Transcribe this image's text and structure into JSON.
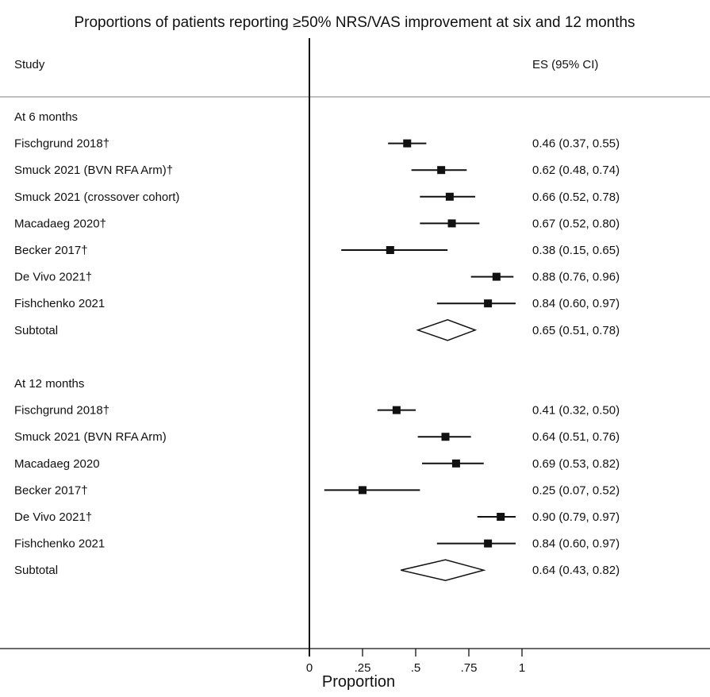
{
  "chart_data": {
    "type": "forest",
    "title": "Proportions of patients reporting ≥50% NRS/VAS improvement at six and 12 months",
    "column_headers": {
      "study": "Study",
      "estimate": "ES (95% CI)"
    },
    "xlabel": "Proportion",
    "x_ticks": [
      {
        "value": 0,
        "label": "0"
      },
      {
        "value": 0.25,
        "label": ".25"
      },
      {
        "value": 0.5,
        "label": ".5"
      },
      {
        "value": 0.75,
        "label": ".75"
      },
      {
        "value": 1,
        "label": "1"
      }
    ],
    "xlim": [
      0,
      1
    ],
    "groups": [
      {
        "label": "At 6 months",
        "studies": [
          {
            "study": "Fischgrund 2018†",
            "es": 0.46,
            "lower": 0.37,
            "upper": 0.55,
            "ci_text": "0.46 (0.37, 0.55)"
          },
          {
            "study": "Smuck 2021 (BVN RFA Arm)†",
            "es": 0.62,
            "lower": 0.48,
            "upper": 0.74,
            "ci_text": "0.62 (0.48, 0.74)"
          },
          {
            "study": "Smuck 2021 (crossover cohort)",
            "es": 0.66,
            "lower": 0.52,
            "upper": 0.78,
            "ci_text": "0.66 (0.52, 0.78)"
          },
          {
            "study": "Macadaeg 2020†",
            "es": 0.67,
            "lower": 0.52,
            "upper": 0.8,
            "ci_text": "0.67 (0.52, 0.80)"
          },
          {
            "study": "Becker 2017†",
            "es": 0.38,
            "lower": 0.15,
            "upper": 0.65,
            "ci_text": "0.38 (0.15, 0.65)"
          },
          {
            "study": "De Vivo 2021†",
            "es": 0.88,
            "lower": 0.76,
            "upper": 0.96,
            "ci_text": "0.88 (0.76, 0.96)"
          },
          {
            "study": "Fishchenko 2021",
            "es": 0.84,
            "lower": 0.6,
            "upper": 0.97,
            "ci_text": "0.84 (0.60, 0.97)"
          }
        ],
        "subtotal": {
          "label": "Subtotal",
          "es": 0.65,
          "lower": 0.51,
          "upper": 0.78,
          "ci_text": "0.65 (0.51, 0.78)"
        }
      },
      {
        "label": "At 12 months",
        "studies": [
          {
            "study": "Fischgrund 2018†",
            "es": 0.41,
            "lower": 0.32,
            "upper": 0.5,
            "ci_text": "0.41 (0.32, 0.50)"
          },
          {
            "study": "Smuck 2021 (BVN RFA Arm)",
            "es": 0.64,
            "lower": 0.51,
            "upper": 0.76,
            "ci_text": "0.64 (0.51, 0.76)"
          },
          {
            "study": "Macadaeg 2020",
            "es": 0.69,
            "lower": 0.53,
            "upper": 0.82,
            "ci_text": "0.69 (0.53, 0.82)"
          },
          {
            "study": "Becker 2017†",
            "es": 0.25,
            "lower": 0.07,
            "upper": 0.52,
            "ci_text": "0.25 (0.07, 0.52)"
          },
          {
            "study": "De Vivo 2021†",
            "es": 0.9,
            "lower": 0.79,
            "upper": 0.97,
            "ci_text": "0.90 (0.79, 0.97)"
          },
          {
            "study": "Fishchenko 2021",
            "es": 0.84,
            "lower": 0.6,
            "upper": 0.97,
            "ci_text": "0.84 (0.60, 0.97)"
          }
        ],
        "subtotal": {
          "label": "Subtotal",
          "es": 0.64,
          "lower": 0.43,
          "upper": 0.82,
          "ci_text": "0.64 (0.43, 0.82)"
        }
      }
    ]
  }
}
